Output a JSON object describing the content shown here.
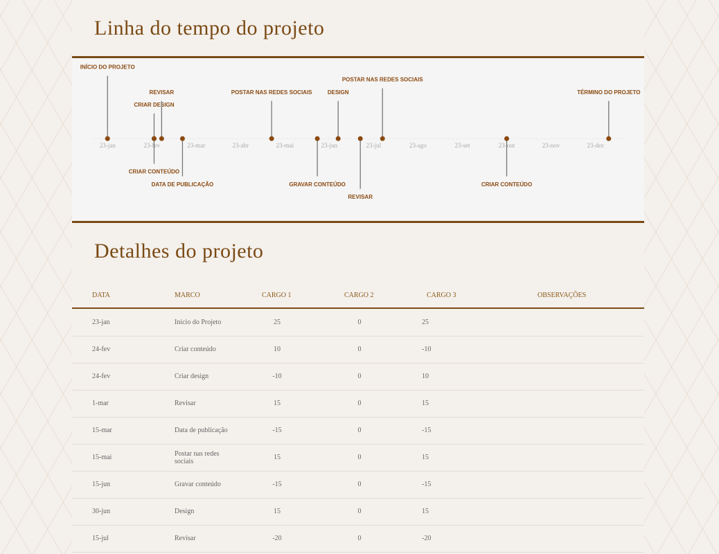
{
  "header": {
    "title": "Linha do tempo do projeto"
  },
  "chart_data": {
    "type": "timeline",
    "x": [
      0,
      1.05,
      1.05,
      1.22,
      1.69,
      3.7,
      4.73,
      5.2,
      5.7,
      6.2,
      9.0,
      11.3
    ],
    "values": [
      25,
      -10,
      10,
      15,
      -15,
      15,
      -15,
      15,
      -20,
      20,
      -15,
      15
    ],
    "labels": [
      "INÍCIO DO PROJETO",
      "CRIAR CONTEÚDO",
      "CRIAR DESIGN",
      "REVISAR",
      "DATA DE PUBLICAÇÃO",
      "POSTAR NAS REDES SOCIAIS",
      "GRAVAR CONTEÚDO",
      "DESIGN",
      "REVISAR",
      "POSTAR NAS REDES SOCIAIS",
      "CRIAR CONTEÚDO",
      "TÉRMINO DO PROJETO"
    ],
    "xlim": [
      -0.8,
      12.1
    ],
    "ylim": [
      -33,
      32
    ],
    "xticks": [
      {
        "value": 0,
        "label": "23-jan"
      },
      {
        "value": 1,
        "label": "23-fev"
      },
      {
        "value": 2,
        "label": "23-mar"
      },
      {
        "value": 3,
        "label": "23-abr"
      },
      {
        "value": 4,
        "label": "23-mai"
      },
      {
        "value": 5,
        "label": "23-jun"
      },
      {
        "value": 6,
        "label": "23-jul"
      },
      {
        "value": 7,
        "label": "23-ago"
      },
      {
        "value": 8,
        "label": "23-set"
      },
      {
        "value": 9,
        "label": "23-out"
      },
      {
        "value": 10,
        "label": "23-nov"
      },
      {
        "value": 11,
        "label": "23-dez"
      }
    ],
    "color": "#8b4a12"
  },
  "details": {
    "title": "Detalhes do projeto",
    "table": {
      "columns": [
        "DATA",
        "MARCO",
        "CARGO 1",
        "CARGO 2",
        "CARGO 3",
        "OBSERVAÇÕES"
      ],
      "rows": [
        [
          "23-jan",
          "Início do Projeto",
          25,
          0,
          25
        ],
        [
          "24-fev",
          "Criar conteúdo",
          10,
          0,
          -10
        ],
        [
          "24-fev",
          "Criar design",
          -10,
          0,
          10
        ],
        [
          "1-mar",
          "Revisar",
          15,
          0,
          15
        ],
        [
          "15-mar",
          "Data de publicação",
          -15,
          0,
          -15
        ],
        [
          "15-mai",
          "Postar nas redes sociais",
          15,
          0,
          15
        ],
        [
          "15-jun",
          "Gravar conteúdo",
          -15,
          0,
          -15
        ],
        [
          "30-jun",
          "Design",
          15,
          0,
          15
        ],
        [
          "15-jul",
          "Revisar",
          -20,
          0,
          -20
        ]
      ]
    }
  }
}
